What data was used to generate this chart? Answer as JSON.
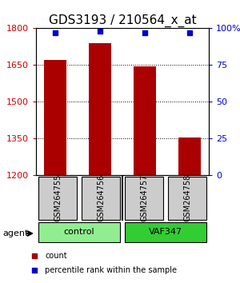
{
  "title": "GDS3193 / 210564_x_at",
  "samples": [
    "GSM264755",
    "GSM264756",
    "GSM264757",
    "GSM264758"
  ],
  "counts": [
    1672,
    1740,
    1645,
    1355
  ],
  "percentile_ranks": [
    97,
    98,
    97,
    97
  ],
  "groups": [
    "control",
    "control",
    "VAF347",
    "VAF347"
  ],
  "group_colors": [
    "#90EE90",
    "#90EE90",
    "#32CD32",
    "#32CD32"
  ],
  "ylim_left": [
    1200,
    1800
  ],
  "ylim_right": [
    0,
    100
  ],
  "yticks_left": [
    1200,
    1350,
    1500,
    1650,
    1800
  ],
  "yticks_right": [
    0,
    25,
    50,
    75,
    100
  ],
  "bar_color": "#AA0000",
  "dot_color": "#0000CC",
  "bar_width": 0.5,
  "background_color": "#ffffff",
  "title_fontsize": 11,
  "tick_fontsize": 8,
  "label_fontsize": 8,
  "group_label_control": "control",
  "group_label_vaf": "VAF347",
  "left_color": "#CC0000",
  "right_color": "#0000CC"
}
